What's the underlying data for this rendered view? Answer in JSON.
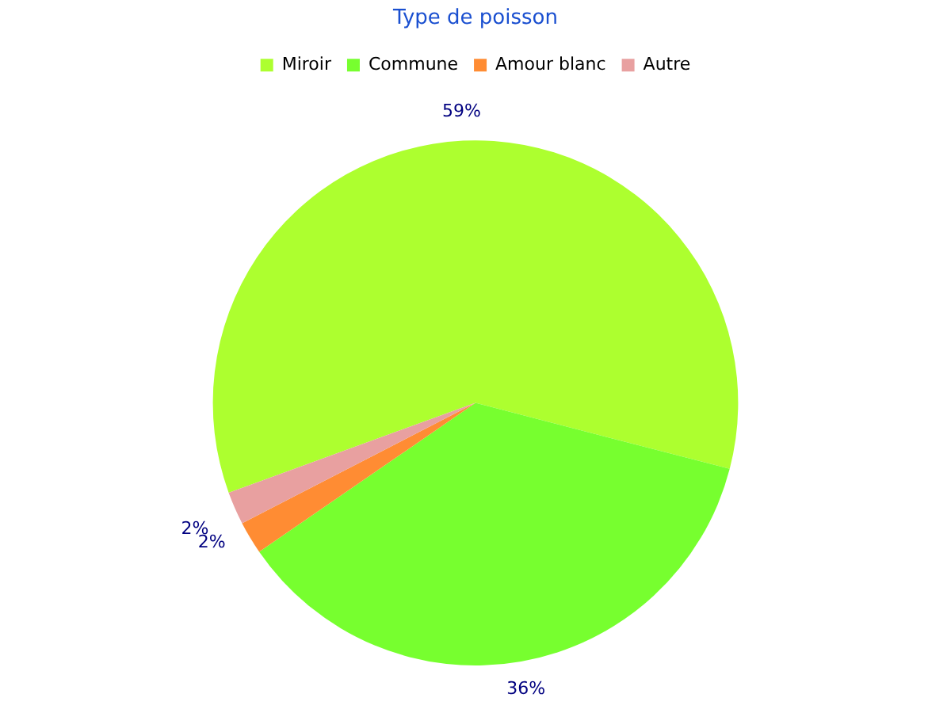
{
  "chart_data": {
    "type": "pie",
    "title": "Type de poisson",
    "categories": [
      "Miroir",
      "Commune",
      "Amour blanc",
      "Autre"
    ],
    "values": [
      59,
      36,
      2,
      2
    ],
    "colors": [
      "#adff2f",
      "#77ff2f",
      "#ff8c33",
      "#e8a0a0"
    ],
    "value_labels": [
      "59%",
      "36%",
      "2%",
      "2%"
    ],
    "legend": "top"
  }
}
